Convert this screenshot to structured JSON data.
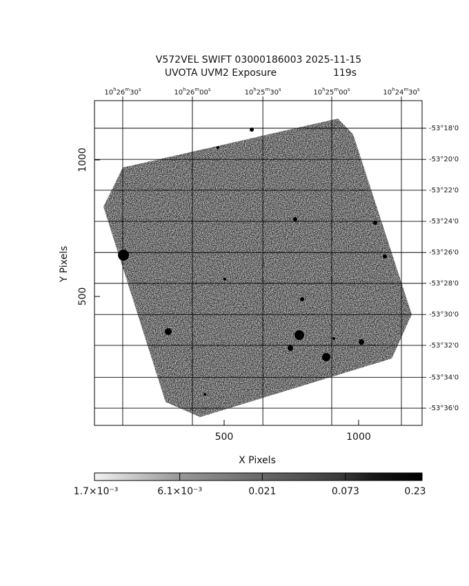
{
  "chart_data": {
    "type": "image",
    "title": "V572VEL SWIFT 03000186003 2025-11-15",
    "subtitle": "UVOTA UVM2 Exposure",
    "exposure": "119s",
    "xlabel": "X Pixels",
    "ylabel": "Y Pixels",
    "xlim": [
      18,
      1236
    ],
    "ylim": [
      28,
      1217
    ],
    "xticks": [
      500,
      1000
    ],
    "yticks": [
      500,
      1000
    ],
    "x2ticks": [
      {
        "value": 123,
        "label": "10h26m30s"
      },
      {
        "value": 382,
        "label": "10h26m00s"
      },
      {
        "value": 644,
        "label": "10h25m30s"
      },
      {
        "value": 900,
        "label": "10h25m00s"
      },
      {
        "value": 1159,
        "label": "10h24m30s"
      }
    ],
    "y2ticks": [
      {
        "value": 1116,
        "label": "-53°18'0"
      },
      {
        "value": 1002,
        "label": "-53°20'0"
      },
      {
        "value": 889,
        "label": "-53°22'0"
      },
      {
        "value": 775,
        "label": "-53°24'0"
      },
      {
        "value": 661,
        "label": "-53°26'0"
      },
      {
        "value": 548,
        "label": "-53°28'0"
      },
      {
        "value": 434,
        "label": "-53°30'0"
      },
      {
        "value": 321,
        "label": "-53°32'0"
      },
      {
        "value": 204,
        "label": "-53°34'0"
      },
      {
        "value": 91,
        "label": "-53°36'0"
      }
    ],
    "grid": true,
    "cscale": "log",
    "clim": [
      0.0017,
      0.23
    ],
    "cticks": [
      {
        "value": 0.0017,
        "label": "1.7×10⁻³"
      },
      {
        "value": 0.0061,
        "label": "6.1×10⁻³"
      },
      {
        "value": 0.021,
        "label": "0.021"
      },
      {
        "value": 0.073,
        "label": "0.073"
      },
      {
        "value": 0.23,
        "label": "0.23"
      }
    ]
  }
}
